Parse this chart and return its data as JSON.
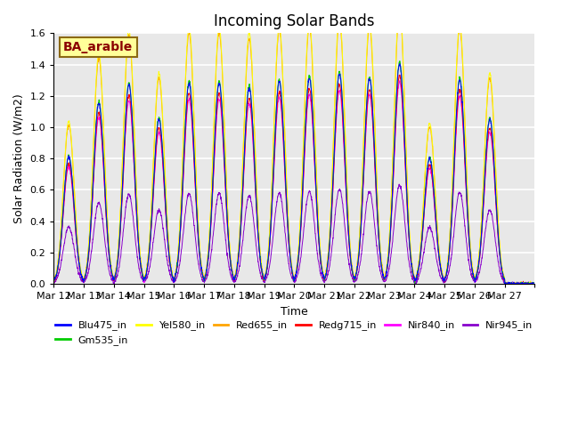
{
  "title": "Incoming Solar Bands",
  "xlabel": "Time",
  "ylabel": "Solar Radiation (W/m2)",
  "annotation_text": "BA_arable",
  "annotation_color": "#8B0000",
  "annotation_bg": "#FFFF99",
  "annotation_border": "#8B6914",
  "ylim": [
    0,
    1.6
  ],
  "xlim_start": 0,
  "xlim_end": 16,
  "num_days": 16,
  "points_per_day": 144,
  "bg_color": "#E8E8E8",
  "grid_color": "white",
  "series": [
    {
      "name": "Blu475_in",
      "color": "#0000FF",
      "scale": 1.0
    },
    {
      "name": "Gm535_in",
      "color": "#00CC00",
      "scale": 1.01
    },
    {
      "name": "Yel580_in",
      "color": "#FFFF00",
      "scale": 1.28
    },
    {
      "name": "Red655_in",
      "color": "#FFA500",
      "scale": 1.25
    },
    {
      "name": "Redg715_in",
      "color": "#FF0000",
      "scale": 0.95
    },
    {
      "name": "Nir840_in",
      "color": "#FF00FF",
      "scale": 0.92
    },
    {
      "name": "Nir945_in",
      "color": "#8800CC",
      "scale": 0.45
    }
  ],
  "day_peaks": [
    0.0,
    0.81,
    1.15,
    1.27,
    1.05,
    1.28,
    1.28,
    1.25,
    1.29,
    1.31,
    1.34,
    1.31,
    1.4,
    0.8,
    1.3,
    1.05,
    0.0
  ],
  "tick_labels": [
    "Mar 12",
    "Mar 13",
    "Mar 14",
    "Mar 15",
    "Mar 16",
    "Mar 17",
    "Mar 18",
    "Mar 19",
    "Mar 20",
    "Mar 21",
    "Mar 22",
    "Mar 23",
    "Mar 24",
    "Mar 25",
    "Mar 26",
    "Mar 27"
  ]
}
